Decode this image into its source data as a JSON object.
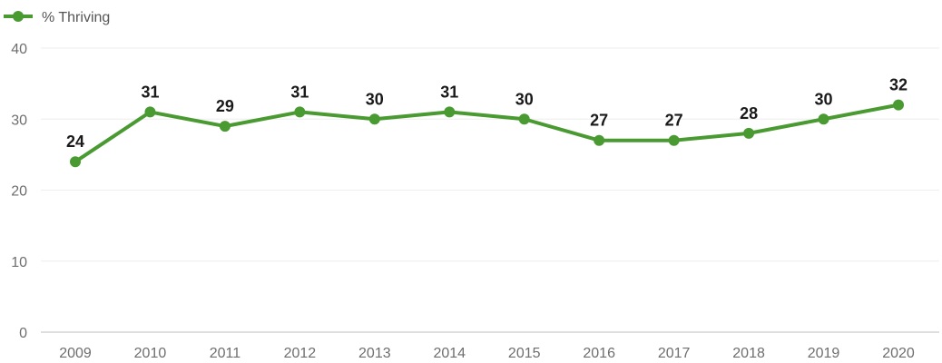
{
  "chart_data": {
    "type": "line",
    "x": [
      "2009",
      "2010",
      "2011",
      "2012",
      "2013",
      "2014",
      "2015",
      "2016",
      "2017",
      "2018",
      "2019",
      "2020"
    ],
    "series": [
      {
        "name": "% Thriving",
        "values": [
          24,
          31,
          29,
          31,
          30,
          31,
          30,
          27,
          27,
          28,
          30,
          32
        ]
      }
    ],
    "yticks": [
      0,
      10,
      20,
      30,
      40
    ],
    "ylim": [
      0,
      40
    ],
    "grid": true,
    "legend": "top-left",
    "data_labels": true,
    "color": "#4a9a32"
  }
}
